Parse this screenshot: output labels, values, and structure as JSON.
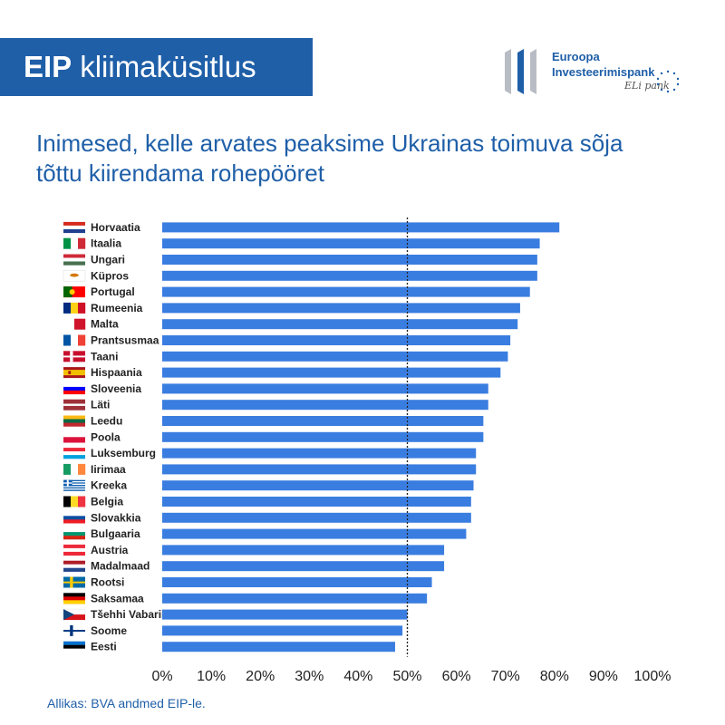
{
  "header": {
    "banner_bold": "EIP",
    "banner_rest": "kliimaküsitlus",
    "logo_line1": "Euroopa",
    "logo_line2": "Investeerimispank",
    "logo_signature": "ELi pank"
  },
  "chart_data": {
    "type": "bar",
    "orientation": "horizontal",
    "title": "Inimesed, kelle arvates peaksime Ukrainas toimuva sõja tõttu kiirendama rohepööret",
    "categories": [
      "Horvaatia",
      "Itaalia",
      "Ungari",
      "Küpros",
      "Portugal",
      "Rumeenia",
      "Malta",
      "Prantsusmaa",
      "Taani",
      "Hispaania",
      "Sloveenia",
      "Läti",
      "Leedu",
      "Poola",
      "Luksemburg",
      "Iirimaa",
      "Kreeka",
      "Belgia",
      "Slovakkia",
      "Bulgaaria",
      "Austria",
      "Madalmaad",
      "Rootsi",
      "Saksamaa",
      "Tšehhi Vabariik",
      "Soome",
      "Eesti"
    ],
    "values": [
      81,
      77,
      76.5,
      76.5,
      75,
      73,
      72.5,
      71,
      70.5,
      69,
      66.5,
      66.5,
      65.5,
      65.5,
      64,
      64,
      63.5,
      63,
      63,
      62,
      57.5,
      57.5,
      55,
      54,
      50,
      49,
      47.5
    ],
    "xlim": [
      0,
      100
    ],
    "x_ticks": [
      "0%",
      "10%",
      "20%",
      "30%",
      "40%",
      "50%",
      "60%",
      "70%",
      "80%",
      "90%",
      "100%"
    ],
    "reference_line": 50,
    "bar_color": "#3a7de0",
    "flag_icons": [
      "flag-croatia",
      "flag-italy",
      "flag-hungary",
      "flag-cyprus",
      "flag-portugal",
      "flag-romania",
      "flag-malta",
      "flag-france",
      "flag-denmark",
      "flag-spain",
      "flag-slovenia",
      "flag-latvia",
      "flag-lithuania",
      "flag-poland",
      "flag-luxembourg",
      "flag-ireland",
      "flag-greece",
      "flag-belgium",
      "flag-slovakia",
      "flag-bulgaria",
      "flag-austria",
      "flag-netherlands",
      "flag-sweden",
      "flag-germany",
      "flag-czechia",
      "flag-finland",
      "flag-estonia"
    ]
  },
  "source": "Allikas: BVA andmed EIP-le."
}
